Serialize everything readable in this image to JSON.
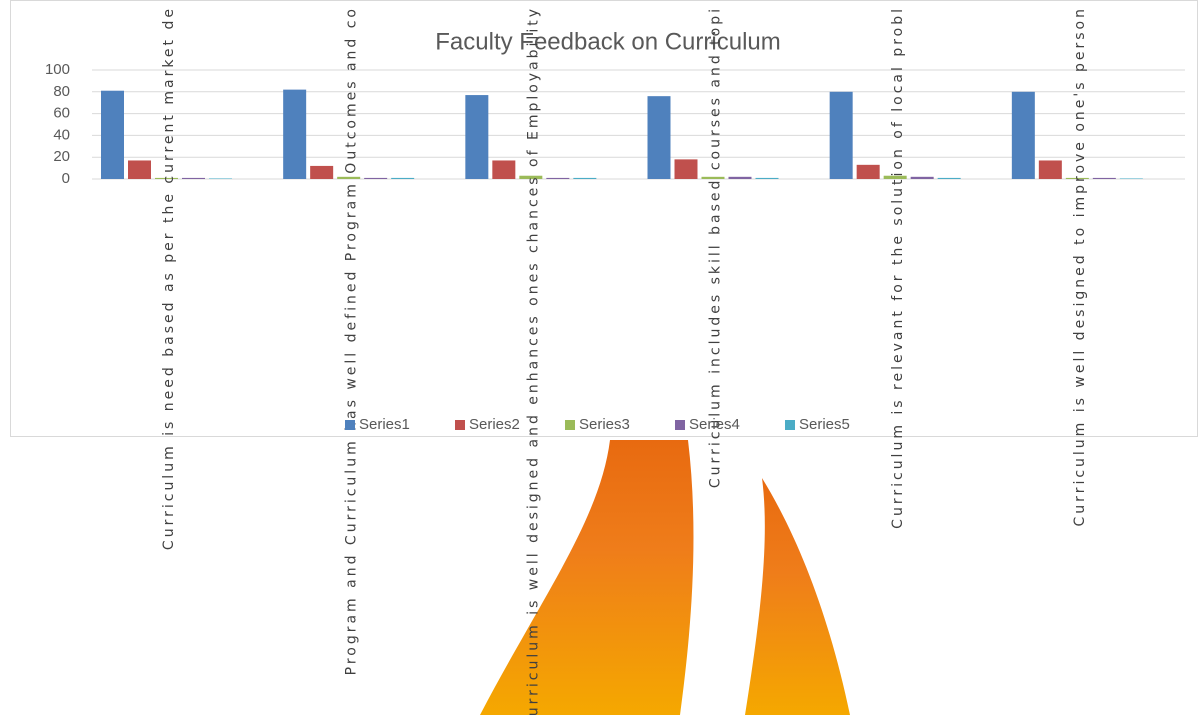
{
  "chart_data": {
    "type": "bar",
    "title": "Faculty Feedback on Curriculum",
    "categories": [
      "Curriculum is need based as per the current market de",
      "Program and Curriculum has well defined Program Outcomes and co",
      "Curriculum is well designed and enhances ones chances of Employability",
      "Curriculum includes skill based courses and topi",
      "Curriculum is relevant for the solution of local probl",
      "Curriculum is well designed to improve one's person"
    ],
    "series": [
      {
        "name": "Series1",
        "color": "#4f81bd",
        "values": [
          81,
          82,
          77,
          76,
          80,
          80
        ]
      },
      {
        "name": "Series2",
        "color": "#c0504d",
        "values": [
          17,
          12,
          17,
          18,
          13,
          17
        ]
      },
      {
        "name": "Series3",
        "color": "#9bbb59",
        "values": [
          1,
          2,
          3,
          2,
          3,
          1
        ]
      },
      {
        "name": "Series4",
        "color": "#8064a2",
        "values": [
          1,
          1,
          1,
          2,
          2,
          1
        ]
      },
      {
        "name": "Series5",
        "color": "#4bacc6",
        "values": [
          0.5,
          1,
          1,
          1,
          1,
          0.5
        ]
      }
    ],
    "ylim": [
      0,
      100
    ],
    "yticks": [
      0,
      20,
      40,
      60,
      80,
      100
    ],
    "grid": true,
    "legend": "bottom"
  }
}
